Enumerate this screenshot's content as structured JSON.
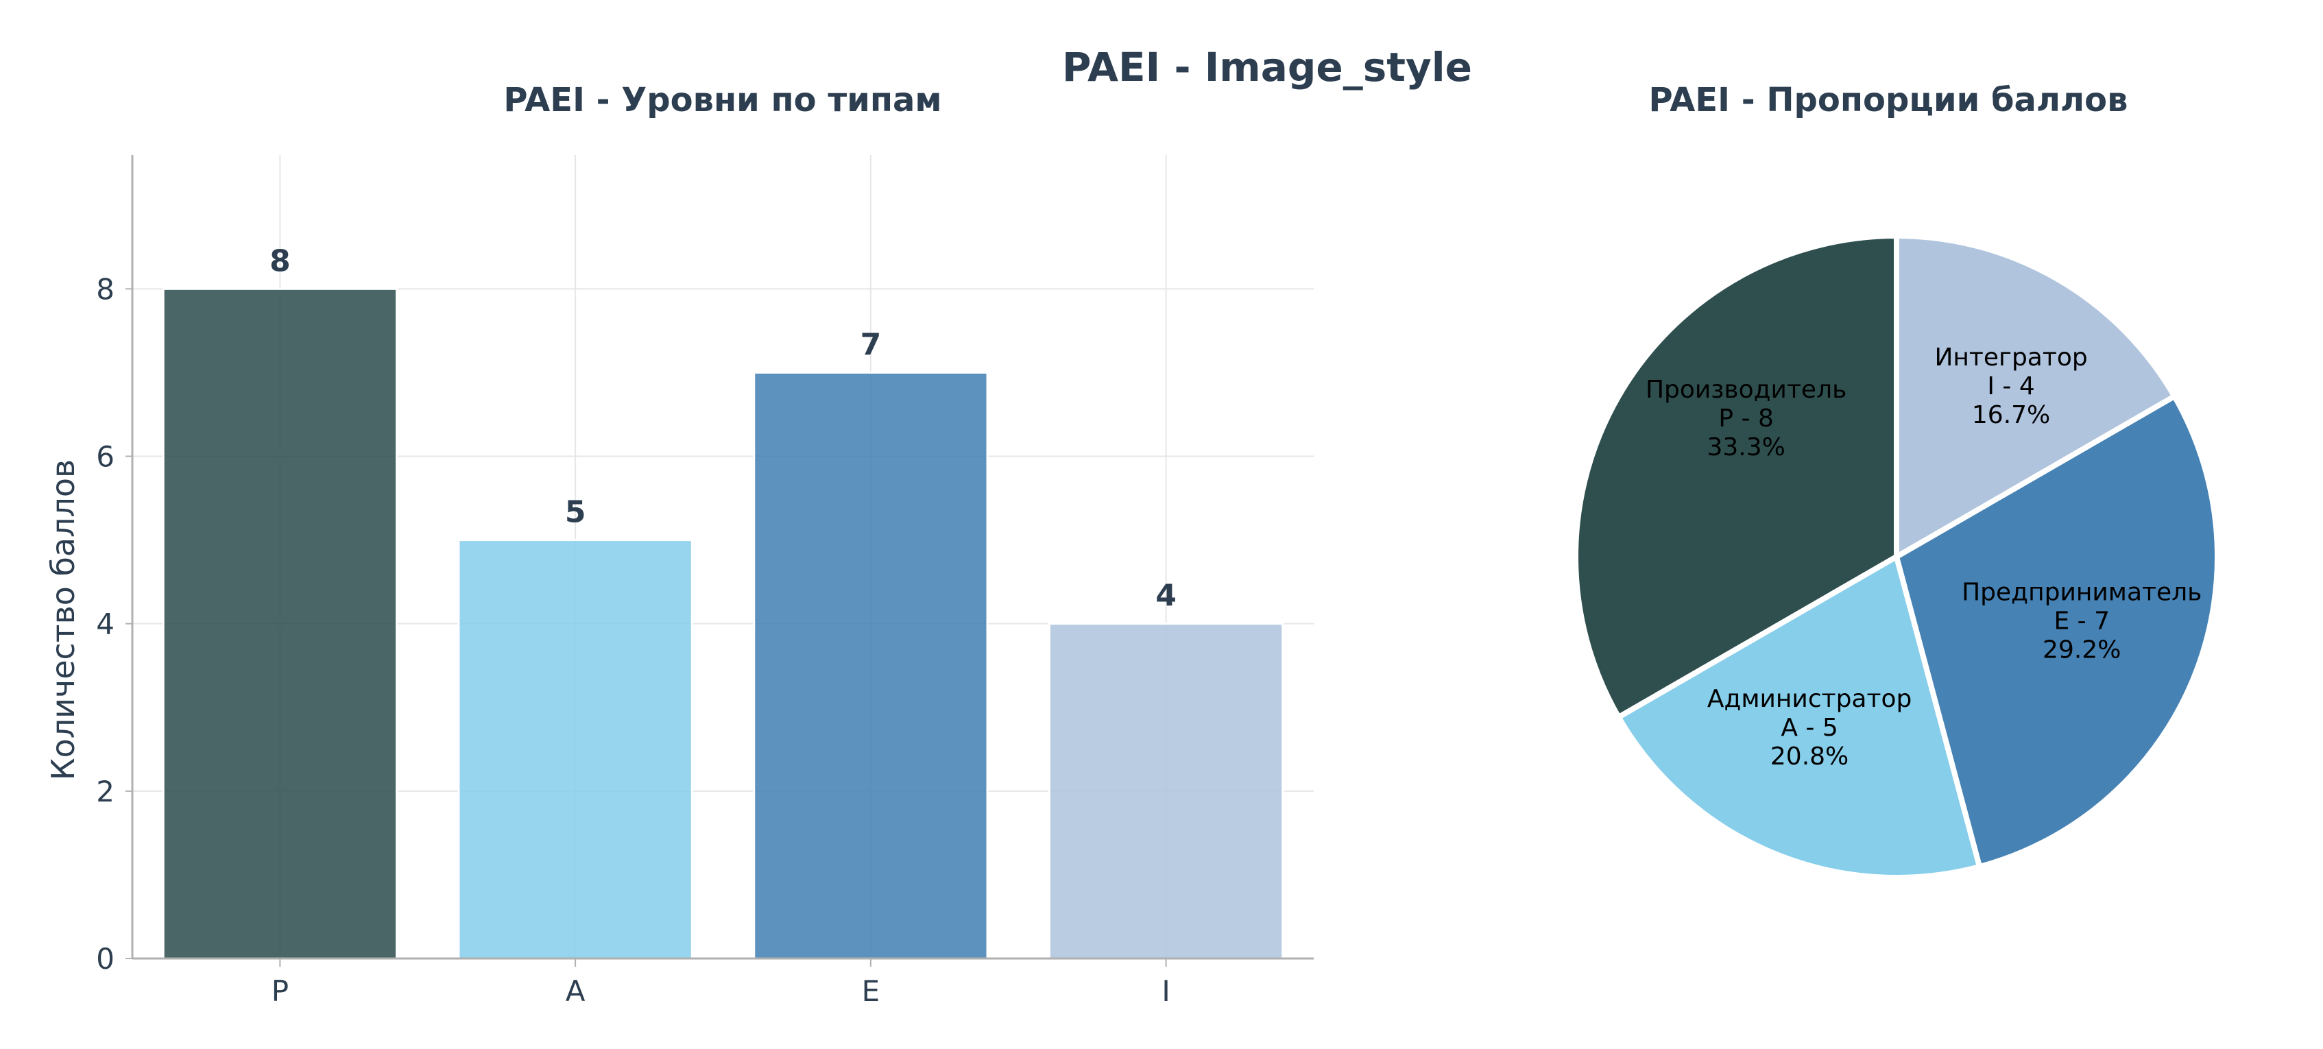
{
  "figure_title": "PAEI - Image_style",
  "colors": {
    "title": "#2c3e50",
    "tick": "#2c3e50",
    "axis": "#b0b0b0",
    "grid": "#e6e6e6",
    "slice_edge": "#ffffff",
    "pie_label": "#000000"
  },
  "chart_data": [
    {
      "type": "bar",
      "title": "PAEI - Уровни по типам",
      "xlabel": "",
      "ylabel": "Количество баллов",
      "categories": [
        "P",
        "A",
        "E",
        "I"
      ],
      "values": [
        8,
        5,
        7,
        4
      ],
      "data_labels": [
        "8",
        "5",
        "7",
        "4"
      ],
      "colors": [
        "#2F4F4F",
        "#87CEEB",
        "#4682B4",
        "#B0C4DE"
      ],
      "bar_opacity": 0.87,
      "ylim": [
        0,
        8.4
      ],
      "yticks": [
        0,
        2,
        4,
        6,
        8
      ],
      "grid": true
    },
    {
      "type": "pie",
      "title": "PAEI - Пропорции баллов",
      "slices": [
        {
          "label": "Производитель",
          "short": "P - 8",
          "value": 8,
          "pct": "33.3%",
          "color": "#2F4F4F"
        },
        {
          "label": "Администратор",
          "short": "A - 5",
          "value": 5,
          "pct": "20.8%",
          "color": "#87CEEB"
        },
        {
          "label": "Предприниматель",
          "short": "E - 7",
          "value": 7,
          "pct": "29.2%",
          "color": "#4682B4"
        },
        {
          "label": "Интегратор",
          "short": "I - 4",
          "value": 4,
          "pct": "16.7%",
          "color": "#B0C4DE"
        }
      ],
      "start_angle_deg": 90,
      "direction": "counterclockwise"
    }
  ]
}
